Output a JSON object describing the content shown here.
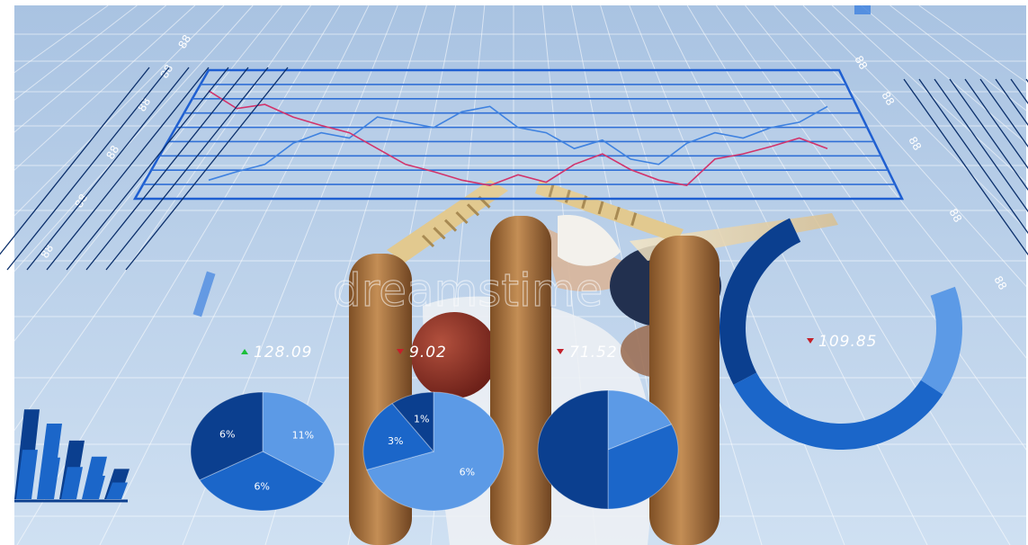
{
  "colors": {
    "sky_top": "#a9c3e2",
    "sky_bottom": "#cfe0f2",
    "dark_blue": "#0b3f8f",
    "mid_blue": "#1b66c9",
    "light_blue": "#5c9ae6",
    "red_line": "#d2336b",
    "blue_line": "#3f82e0",
    "stump": "#b27b45"
  },
  "watermark": "dreamstime",
  "stats": [
    {
      "value": "128.09",
      "trend": "up"
    },
    {
      "value": "9.02",
      "trend": "down"
    },
    {
      "value": "71.52",
      "trend": "down"
    },
    {
      "value": "109.85",
      "trend": "down"
    }
  ],
  "pies": [
    {
      "slices": [
        {
          "pct": 0.34,
          "label": "11%"
        },
        {
          "pct": 0.33,
          "label": "6%"
        },
        {
          "pct": 0.33,
          "label": "6%"
        }
      ],
      "colors": [
        "light_blue",
        "mid_blue",
        "dark_blue"
      ]
    },
    {
      "slices": [
        {
          "pct": 0.7,
          "label": "6%"
        },
        {
          "pct": 0.2,
          "label": "3%"
        },
        {
          "pct": 0.1,
          "label": "1%"
        }
      ],
      "colors": [
        "light_blue",
        "mid_blue",
        "dark_blue"
      ]
    },
    {
      "slices": [
        {
          "pct": 0.18,
          "label": ""
        },
        {
          "pct": 0.32,
          "label": ""
        },
        {
          "pct": 0.5,
          "label": ""
        }
      ],
      "colors": [
        "light_blue",
        "mid_blue",
        "dark_blue"
      ]
    }
  ],
  "bar_levels": [
    0.95,
    0.8,
    0.62,
    0.45,
    0.32
  ],
  "donut_levels": [
    0.35,
    0.45,
    0.2
  ],
  "line_chart": {
    "red": [
      0.95,
      0.78,
      0.82,
      0.7,
      0.62,
      0.55,
      0.4,
      0.25,
      0.18,
      0.1,
      0.05,
      0.15,
      0.08,
      0.25,
      0.35,
      0.2,
      0.1,
      0.05,
      0.3,
      0.35,
      0.42,
      0.5,
      0.4
    ],
    "blue": [
      0.1,
      0.18,
      0.25,
      0.45,
      0.55,
      0.5,
      0.7,
      0.65,
      0.6,
      0.75,
      0.8,
      0.6,
      0.55,
      0.4,
      0.48,
      0.3,
      0.25,
      0.45,
      0.55,
      0.5,
      0.6,
      0.65,
      0.8
    ]
  },
  "axis_glyphs": [
    "88",
    "88",
    "88",
    "88",
    "88",
    "88",
    "88",
    "88",
    "88",
    "88",
    "88",
    "88"
  ]
}
